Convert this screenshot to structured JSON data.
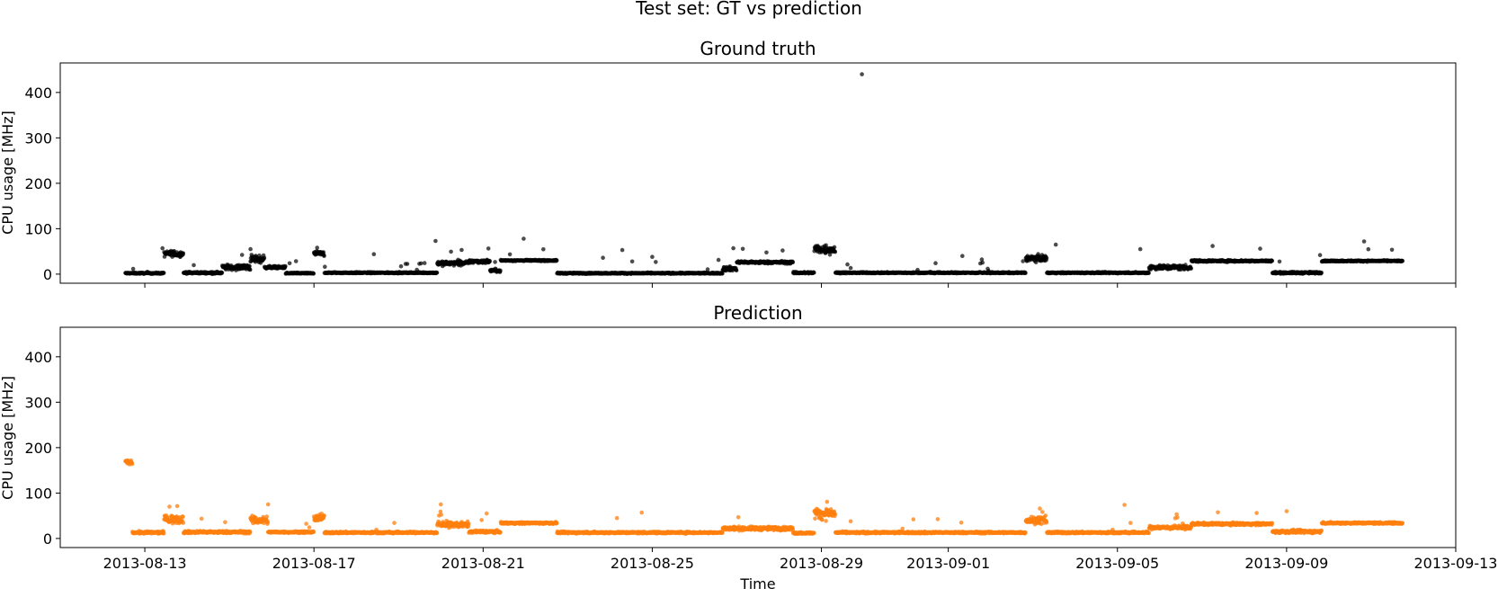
{
  "figure": {
    "suptitle": "Test set: GT vs prediction"
  },
  "chart_data": [
    {
      "type": "scatter",
      "title": "Ground truth",
      "xlabel": "",
      "ylabel": "CPU usage [MHz]",
      "x_axis": "date",
      "xlim": [
        "2013-08-11T00:00",
        "2013-09-13T00:00"
      ],
      "ylim": [
        -20,
        465
      ],
      "yticks": [
        0,
        100,
        200,
        300,
        400
      ],
      "color": "#000000",
      "segments": [
        {
          "start": "2013-08-12T13:00",
          "end": "2013-08-13T11:00",
          "level": 2,
          "spread": 2
        },
        {
          "start": "2013-08-13T11:00",
          "end": "2013-08-13T22:00",
          "level": 45,
          "spread": 10
        },
        {
          "start": "2013-08-13T22:00",
          "end": "2013-08-14T20:00",
          "level": 3,
          "spread": 3
        },
        {
          "start": "2013-08-14T20:00",
          "end": "2013-08-15T12:00",
          "level": 15,
          "spread": 9
        },
        {
          "start": "2013-08-15T12:00",
          "end": "2013-08-15T20:00",
          "level": 33,
          "spread": 14
        },
        {
          "start": "2013-08-15T20:00",
          "end": "2013-08-16T08:00",
          "level": 15,
          "spread": 4
        },
        {
          "start": "2013-08-16T08:00",
          "end": "2013-08-17T00:00",
          "level": 2,
          "spread": 2
        },
        {
          "start": "2013-08-17T00:00",
          "end": "2013-08-17T06:00",
          "level": 45,
          "spread": 8
        },
        {
          "start": "2013-08-17T06:00",
          "end": "2013-08-19T22:00",
          "level": 3,
          "spread": 2
        },
        {
          "start": "2013-08-19T22:00",
          "end": "2013-08-20T16:00",
          "level": 24,
          "spread": 8
        },
        {
          "start": "2013-08-20T16:00",
          "end": "2013-08-21T04:00",
          "level": 28,
          "spread": 6
        },
        {
          "start": "2013-08-21T04:00",
          "end": "2013-08-21T10:00",
          "level": 8,
          "spread": 5
        },
        {
          "start": "2013-08-21T10:00",
          "end": "2013-08-22T18:00",
          "level": 30,
          "spread": 2
        },
        {
          "start": "2013-08-22T18:00",
          "end": "2013-08-26T16:00",
          "level": 2,
          "spread": 2
        },
        {
          "start": "2013-08-26T16:00",
          "end": "2013-08-27T00:00",
          "level": 12,
          "spread": 7
        },
        {
          "start": "2013-08-27T00:00",
          "end": "2013-08-28T08:00",
          "level": 26,
          "spread": 4
        },
        {
          "start": "2013-08-28T08:00",
          "end": "2013-08-28T20:00",
          "level": 3,
          "spread": 3
        },
        {
          "start": "2013-08-28T20:00",
          "end": "2013-08-29T08:00",
          "level": 55,
          "spread": 17
        },
        {
          "start": "2013-08-29T08:00",
          "end": "2013-09-02T20:00",
          "level": 3,
          "spread": 2
        },
        {
          "start": "2013-09-02T20:00",
          "end": "2013-09-03T08:00",
          "level": 35,
          "spread": 10
        },
        {
          "start": "2013-09-03T08:00",
          "end": "2013-09-05T18:00",
          "level": 3,
          "spread": 2
        },
        {
          "start": "2013-09-05T18:00",
          "end": "2013-09-06T18:00",
          "level": 15,
          "spread": 8
        },
        {
          "start": "2013-09-06T18:00",
          "end": "2013-09-08T16:00",
          "level": 29,
          "spread": 3
        },
        {
          "start": "2013-09-08T16:00",
          "end": "2013-09-09T20:00",
          "level": 3,
          "spread": 3
        },
        {
          "start": "2013-09-09T20:00",
          "end": "2013-09-11T18:00",
          "level": 29,
          "spread": 2
        }
      ],
      "outliers": [
        {
          "x": "2013-08-29T23:00",
          "y": 440
        },
        {
          "x": "2013-08-21T23:00",
          "y": 78
        },
        {
          "x": "2013-08-19T21:00",
          "y": 73
        },
        {
          "x": "2013-09-10T20:00",
          "y": 72
        },
        {
          "x": "2013-09-07T06:00",
          "y": 62
        },
        {
          "x": "2013-08-26T22:00",
          "y": 57
        },
        {
          "x": "2013-09-08T09:00",
          "y": 56
        },
        {
          "x": "2013-09-05T13:00",
          "y": 55
        },
        {
          "x": "2013-08-24T07:00",
          "y": 53
        },
        {
          "x": "2013-08-15T12:00",
          "y": 55
        },
        {
          "x": "2013-08-13T10:00",
          "y": 57
        },
        {
          "x": "2013-08-23T20:00",
          "y": 36
        },
        {
          "x": "2013-08-25T00:00",
          "y": 38
        },
        {
          "x": "2013-09-01T08:00",
          "y": 40
        },
        {
          "x": "2013-09-03T13:00",
          "y": 65
        },
        {
          "x": "2013-09-09T19:00",
          "y": 42
        },
        {
          "x": "2013-08-18T10:00",
          "y": 44
        },
        {
          "x": "2013-08-28T02:00",
          "y": 52
        }
      ]
    },
    {
      "type": "scatter",
      "title": "Prediction",
      "xlabel": "Time",
      "ylabel": "CPU usage [MHz]",
      "x_axis": "date",
      "xlim": [
        "2013-08-11T00:00",
        "2013-09-13T00:00"
      ],
      "ylim": [
        -20,
        465
      ],
      "yticks": [
        0,
        100,
        200,
        300,
        400
      ],
      "xticks": [
        "2013-08-13",
        "2013-08-17",
        "2013-08-21",
        "2013-08-25",
        "2013-08-29",
        "2013-09-01",
        "2013-09-05",
        "2013-09-09",
        "2013-09-13"
      ],
      "color": "#ff7f0e",
      "segments": [
        {
          "start": "2013-08-12T13:00",
          "end": "2013-08-12T17:00",
          "level": 168,
          "spread": 6
        },
        {
          "start": "2013-08-12T17:00",
          "end": "2013-08-13T11:00",
          "level": 13,
          "spread": 4
        },
        {
          "start": "2013-08-13T11:00",
          "end": "2013-08-13T22:00",
          "level": 42,
          "spread": 14
        },
        {
          "start": "2013-08-13T22:00",
          "end": "2013-08-15T12:00",
          "level": 14,
          "spread": 4
        },
        {
          "start": "2013-08-15T12:00",
          "end": "2013-08-15T22:00",
          "level": 40,
          "spread": 14
        },
        {
          "start": "2013-08-15T22:00",
          "end": "2013-08-17T00:00",
          "level": 14,
          "spread": 3
        },
        {
          "start": "2013-08-17T00:00",
          "end": "2013-08-17T06:00",
          "level": 45,
          "spread": 12
        },
        {
          "start": "2013-08-17T06:00",
          "end": "2013-08-19T22:00",
          "level": 13,
          "spread": 3
        },
        {
          "start": "2013-08-19T22:00",
          "end": "2013-08-20T16:00",
          "level": 30,
          "spread": 9
        },
        {
          "start": "2013-08-20T16:00",
          "end": "2013-08-21T10:00",
          "level": 15,
          "spread": 4
        },
        {
          "start": "2013-08-21T10:00",
          "end": "2013-08-22T18:00",
          "level": 34,
          "spread": 3
        },
        {
          "start": "2013-08-22T18:00",
          "end": "2013-08-26T16:00",
          "level": 13,
          "spread": 3
        },
        {
          "start": "2013-08-26T16:00",
          "end": "2013-08-28T08:00",
          "level": 22,
          "spread": 6
        },
        {
          "start": "2013-08-28T08:00",
          "end": "2013-08-28T20:00",
          "level": 12,
          "spread": 3
        },
        {
          "start": "2013-08-28T20:00",
          "end": "2013-08-29T08:00",
          "level": 55,
          "spread": 18
        },
        {
          "start": "2013-08-29T08:00",
          "end": "2013-09-02T20:00",
          "level": 13,
          "spread": 3
        },
        {
          "start": "2013-09-02T20:00",
          "end": "2013-09-03T08:00",
          "level": 40,
          "spread": 12
        },
        {
          "start": "2013-09-03T08:00",
          "end": "2013-09-05T18:00",
          "level": 13,
          "spread": 3
        },
        {
          "start": "2013-09-05T18:00",
          "end": "2013-09-06T18:00",
          "level": 24,
          "spread": 6
        },
        {
          "start": "2013-09-06T18:00",
          "end": "2013-09-08T16:00",
          "level": 32,
          "spread": 4
        },
        {
          "start": "2013-09-08T16:00",
          "end": "2013-09-09T20:00",
          "level": 15,
          "spread": 5
        },
        {
          "start": "2013-09-09T20:00",
          "end": "2013-09-11T18:00",
          "level": 34,
          "spread": 3
        }
      ],
      "outliers": [
        {
          "x": "2013-09-05T04:00",
          "y": 74
        },
        {
          "x": "2013-08-15T22:00",
          "y": 75
        },
        {
          "x": "2013-08-20T00:00",
          "y": 75
        },
        {
          "x": "2013-08-21T02:00",
          "y": 55
        },
        {
          "x": "2013-08-24T18:00",
          "y": 57
        },
        {
          "x": "2013-08-24T04:00",
          "y": 45
        },
        {
          "x": "2013-09-08T07:00",
          "y": 56
        },
        {
          "x": "2013-09-09T00:00",
          "y": 60
        },
        {
          "x": "2013-09-03T04:00",
          "y": 66
        },
        {
          "x": "2013-08-13T14:00",
          "y": 70
        }
      ]
    }
  ]
}
